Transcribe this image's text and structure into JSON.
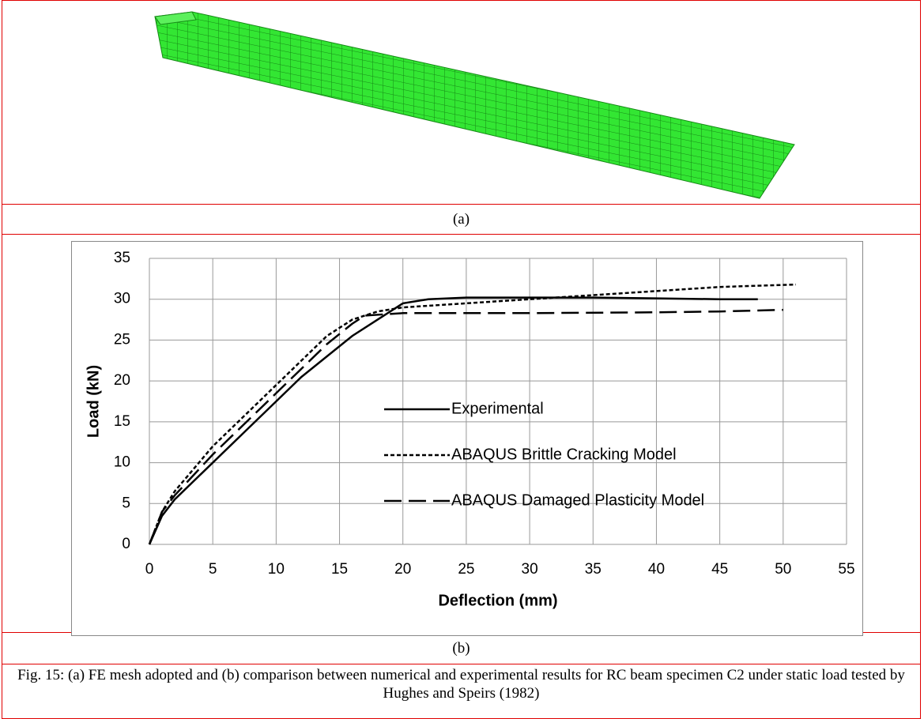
{
  "panels": [
    {
      "label": "(a)"
    },
    {
      "label": "(b)"
    }
  ],
  "caption": "Fig. 15: (a) FE mesh adopted and (b) comparison between numerical and experimental results for RC beam specimen C2 under static load tested by Hughes and Speirs (1982)",
  "chart_data": {
    "type": "line",
    "x_label": "Deflection (mm)",
    "y_label": "Load (kN)",
    "xlim": [
      0,
      55
    ],
    "xticks": [
      0,
      5,
      10,
      15,
      20,
      25,
      30,
      35,
      40,
      45,
      50,
      55
    ],
    "ylim": [
      0,
      35
    ],
    "yticks": [
      0,
      5,
      10,
      15,
      20,
      25,
      30,
      35
    ],
    "grid": true,
    "legend": "center",
    "series": [
      {
        "name": "Experimental",
        "color": "#000000",
        "line_style": "solid",
        "x": [
          0,
          1,
          2,
          5,
          8,
          10,
          12,
          14,
          16,
          18,
          20,
          22,
          25,
          30,
          35,
          40,
          45,
          48
        ],
        "values": [
          0,
          3.5,
          5.5,
          10,
          14.5,
          17.5,
          20.5,
          23,
          25.5,
          27.5,
          29.5,
          30,
          30.2,
          30.2,
          30.2,
          30.1,
          30,
          30
        ]
      },
      {
        "name": "ABAQUS Brittle Cracking Model",
        "color": "#000000",
        "line_style": "dotted",
        "x": [
          0,
          1,
          2,
          5,
          8,
          10,
          12,
          14,
          16,
          18,
          20,
          25,
          30,
          35,
          40,
          45,
          51
        ],
        "values": [
          0,
          4,
          6.5,
          12,
          16.5,
          19.5,
          22.5,
          25.5,
          27.5,
          28.5,
          29,
          29.5,
          30,
          30.5,
          31,
          31.5,
          31.8
        ]
      },
      {
        "name": "ABAQUS Damaged Plasticity Model",
        "color": "#000000",
        "line_style": "dashed",
        "x": [
          0,
          1,
          2,
          5,
          8,
          10,
          12,
          14,
          16,
          17,
          20,
          25,
          30,
          40,
          45,
          50
        ],
        "values": [
          0,
          4,
          6,
          11,
          15.5,
          18.5,
          21.5,
          24.5,
          27,
          28,
          28.3,
          28.3,
          28.3,
          28.4,
          28.5,
          28.7
        ]
      }
    ]
  }
}
